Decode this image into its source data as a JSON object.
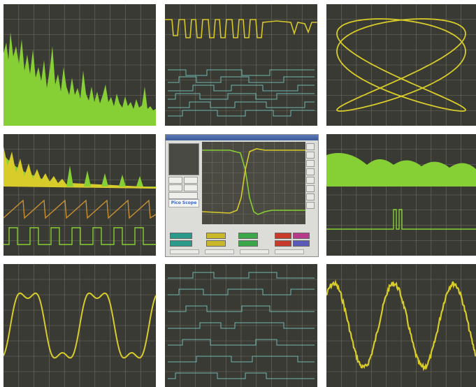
{
  "logo": "Pico Scope",
  "colors": {
    "scope_bg": "#3a3a34",
    "grid": "#6e6e62",
    "green": "#8ed83a",
    "yellow": "#d8cc2a",
    "teal": "#6eb8b0",
    "orange": "#c89030",
    "app_bg": "#dcdcd8"
  },
  "panels": [
    {
      "name": "spectrum-panel",
      "type": "spectrum"
    },
    {
      "name": "logic-timing-panel",
      "type": "digital"
    },
    {
      "name": "lissajous-panel",
      "type": "xy"
    },
    {
      "name": "fft-sawtooth-panel",
      "type": "spectrum+timebase"
    },
    {
      "name": "software-window-panel",
      "type": "application"
    },
    {
      "name": "sinc-pulse-panel",
      "type": "spectrum+pulse"
    },
    {
      "name": "distorted-sine-panel",
      "type": "timebase"
    },
    {
      "name": "serial-data-panel",
      "type": "digital"
    },
    {
      "name": "noisy-sine-panel",
      "type": "timebase"
    }
  ]
}
